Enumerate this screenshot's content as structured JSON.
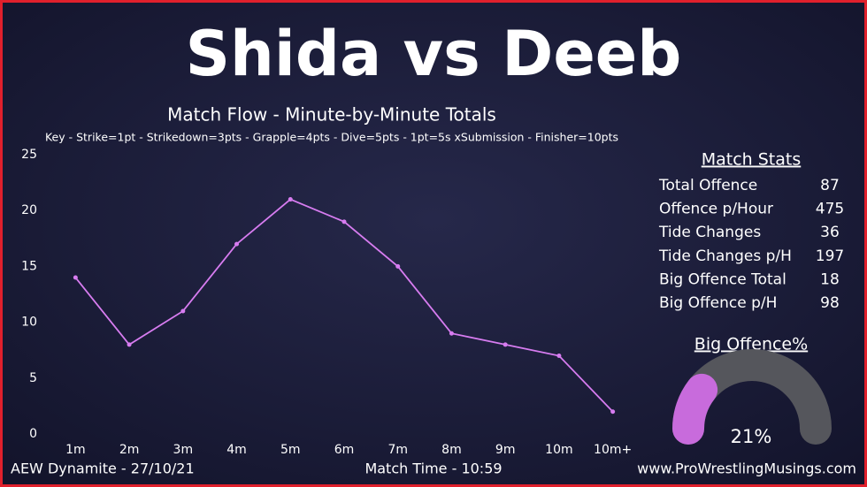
{
  "header": {
    "title": "Shida vs Deeb"
  },
  "chart_data": {
    "type": "line",
    "title": "Match Flow - Minute-by-Minute Totals",
    "subtitle": "Key - Strike=1pt - Strikedown=3pts - Grapple=4pts - Dive=5pts - 1pt=5s xSubmission - Finisher=10pts",
    "categories": [
      "1m",
      "2m",
      "3m",
      "4m",
      "5m",
      "6m",
      "7m",
      "8m",
      "9m",
      "10m",
      "10m+"
    ],
    "values": [
      14,
      8,
      11,
      17,
      21,
      19,
      15,
      9,
      8,
      7,
      2
    ],
    "color": "#d77cf0",
    "ylim": [
      0,
      25
    ],
    "yticks": [
      0,
      5,
      10,
      15,
      20,
      25
    ]
  },
  "stats": {
    "title": "Match Stats",
    "rows": [
      [
        "Total Offence",
        "87"
      ],
      [
        "Offence p/Hour",
        "475"
      ],
      [
        "Tide Changes",
        "36"
      ],
      [
        "Tide Changes p/H",
        "197"
      ],
      [
        "Big Offence Total",
        "18"
      ],
      [
        "Big Offence p/H",
        "98"
      ]
    ]
  },
  "gauge": {
    "title": "Big Offence%",
    "value": 21,
    "value_label": "21%",
    "max": 100,
    "color": "#c86bdc",
    "track_color": "#55565c"
  },
  "footer": {
    "left": "AEW Dynamite - 27/10/21",
    "center": "Match Time - 10:59",
    "right": "www.ProWrestlingMusings.com"
  }
}
